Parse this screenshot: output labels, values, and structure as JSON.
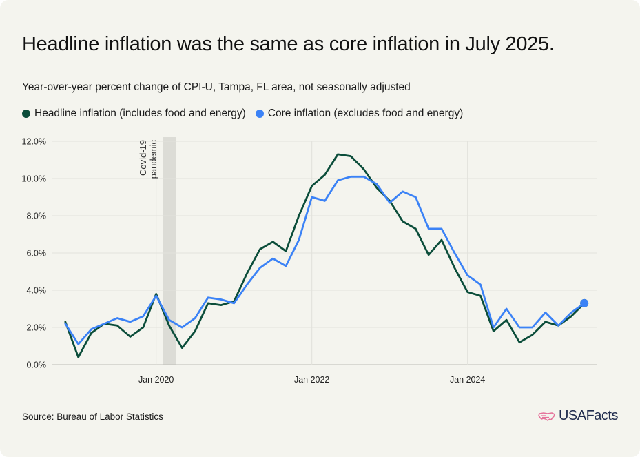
{
  "header": {
    "title": "Headline inflation was the same as core inflation in July 2025.",
    "subtitle": "Year-over-year percent change of CPI-U, Tampa, FL area, not seasonally adjusted"
  },
  "footer": {
    "source": "Source: Bureau of Labor Statistics",
    "brand": "USAFacts"
  },
  "colors": {
    "background": "#f4f4ee",
    "headline": "#0b4d3a",
    "core": "#3b82f6",
    "grid": "#e2e2dc",
    "annotation_band": "#dcdcd6",
    "brand_icon": "#e5739b"
  },
  "chart_data": {
    "type": "line",
    "title": "Headline inflation was the same as core inflation in July 2025.",
    "subtitle": "Year-over-year percent change of CPI-U, Tampa, FL area, not seasonally adjusted",
    "xlabel": "",
    "ylabel": "",
    "x_axis": "date",
    "x_ticks": [
      {
        "value": "2020-01",
        "label": "Jan 2020"
      },
      {
        "value": "2022-01",
        "label": "Jan 2022"
      },
      {
        "value": "2024-01",
        "label": "Jan 2024"
      }
    ],
    "xlim": [
      "2018-09",
      "2025-09"
    ],
    "ylim": [
      0,
      12
    ],
    "y_ticks": [
      {
        "value": 0,
        "label": "0.0%"
      },
      {
        "value": 2,
        "label": "2.0%"
      },
      {
        "value": 4,
        "label": "4.0%"
      },
      {
        "value": 6,
        "label": "6.0%"
      },
      {
        "value": 8,
        "label": "8.0%"
      },
      {
        "value": 10,
        "label": "10.0%"
      },
      {
        "value": 12,
        "label": "12.0%"
      }
    ],
    "grid": true,
    "legend_position": "top-left",
    "annotation": {
      "label_lines": [
        "Covid-19",
        "pandemic"
      ],
      "start": "2020-02",
      "end": "2020-04"
    },
    "x": [
      "2018-11",
      "2019-01",
      "2019-03",
      "2019-05",
      "2019-07",
      "2019-09",
      "2019-11",
      "2020-01",
      "2020-03",
      "2020-05",
      "2020-07",
      "2020-09",
      "2020-11",
      "2021-01",
      "2021-03",
      "2021-05",
      "2021-07",
      "2021-09",
      "2021-11",
      "2022-01",
      "2022-03",
      "2022-05",
      "2022-07",
      "2022-09",
      "2022-11",
      "2023-01",
      "2023-03",
      "2023-05",
      "2023-07",
      "2023-09",
      "2023-11",
      "2024-01",
      "2024-03",
      "2024-05",
      "2024-07",
      "2024-09",
      "2024-11",
      "2025-01",
      "2025-03",
      "2025-05",
      "2025-07"
    ],
    "series": [
      {
        "name": "Headline inflation (includes food and energy)",
        "color": "#0b4d3a",
        "values": [
          2.3,
          0.4,
          1.7,
          2.2,
          2.1,
          1.5,
          2.0,
          3.8,
          2.1,
          0.9,
          1.8,
          3.3,
          3.2,
          3.4,
          4.9,
          6.2,
          6.6,
          6.1,
          8.0,
          9.6,
          10.2,
          11.3,
          11.2,
          10.5,
          9.5,
          8.8,
          7.7,
          7.3,
          5.9,
          6.7,
          5.2,
          3.9,
          3.7,
          1.8,
          2.4,
          1.2,
          1.6,
          2.3,
          2.1,
          2.6,
          3.3
        ]
      },
      {
        "name": "Core inflation (excludes food and energy)",
        "color": "#3b82f6",
        "values": [
          2.2,
          1.1,
          1.9,
          2.2,
          2.5,
          2.3,
          2.6,
          3.7,
          2.4,
          2.0,
          2.5,
          3.6,
          3.5,
          3.3,
          4.3,
          5.2,
          5.7,
          5.3,
          6.7,
          9.0,
          8.8,
          9.9,
          10.1,
          10.1,
          9.7,
          8.7,
          9.3,
          9.0,
          7.3,
          7.3,
          6.0,
          4.8,
          4.3,
          2.0,
          3.0,
          2.0,
          2.0,
          2.8,
          2.1,
          2.8,
          3.3
        ]
      }
    ]
  }
}
